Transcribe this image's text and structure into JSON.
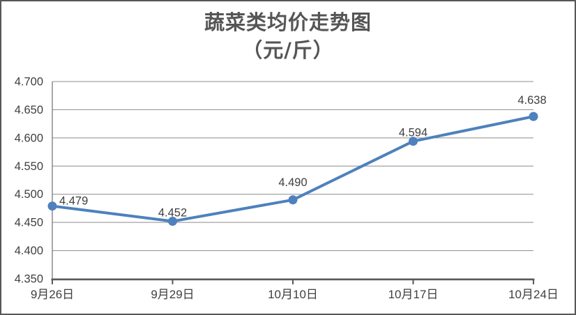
{
  "window": {
    "background": "#ffffff",
    "border_color": "#575757"
  },
  "chart_data": {
    "type": "line",
    "title": "蔬菜类均价走势图",
    "subtitle": "（元/斤）",
    "categories": [
      "9月26日",
      "9月29日",
      "10月10日",
      "10月17日",
      "10月24日"
    ],
    "values": [
      4.479,
      4.452,
      4.49,
      4.594,
      4.638
    ],
    "data_labels": [
      "4.479",
      "4.452",
      "4.490",
      "4.594",
      "4.638"
    ],
    "y_ticks": [
      "4.350",
      "4.400",
      "4.450",
      "4.500",
      "4.550",
      "4.600",
      "4.650",
      "4.700"
    ],
    "ylim": [
      4.35,
      4.7
    ],
    "xlabel": "",
    "ylabel": "",
    "grid": "horizontal",
    "legend": "none",
    "line_color": "#4E81BD",
    "marker": "circle",
    "gridline_color": "#8C8C8C",
    "value_axis_color": "#7A7A7A",
    "category_axis_color": "#595959",
    "label_color": "#3F3F3F"
  }
}
